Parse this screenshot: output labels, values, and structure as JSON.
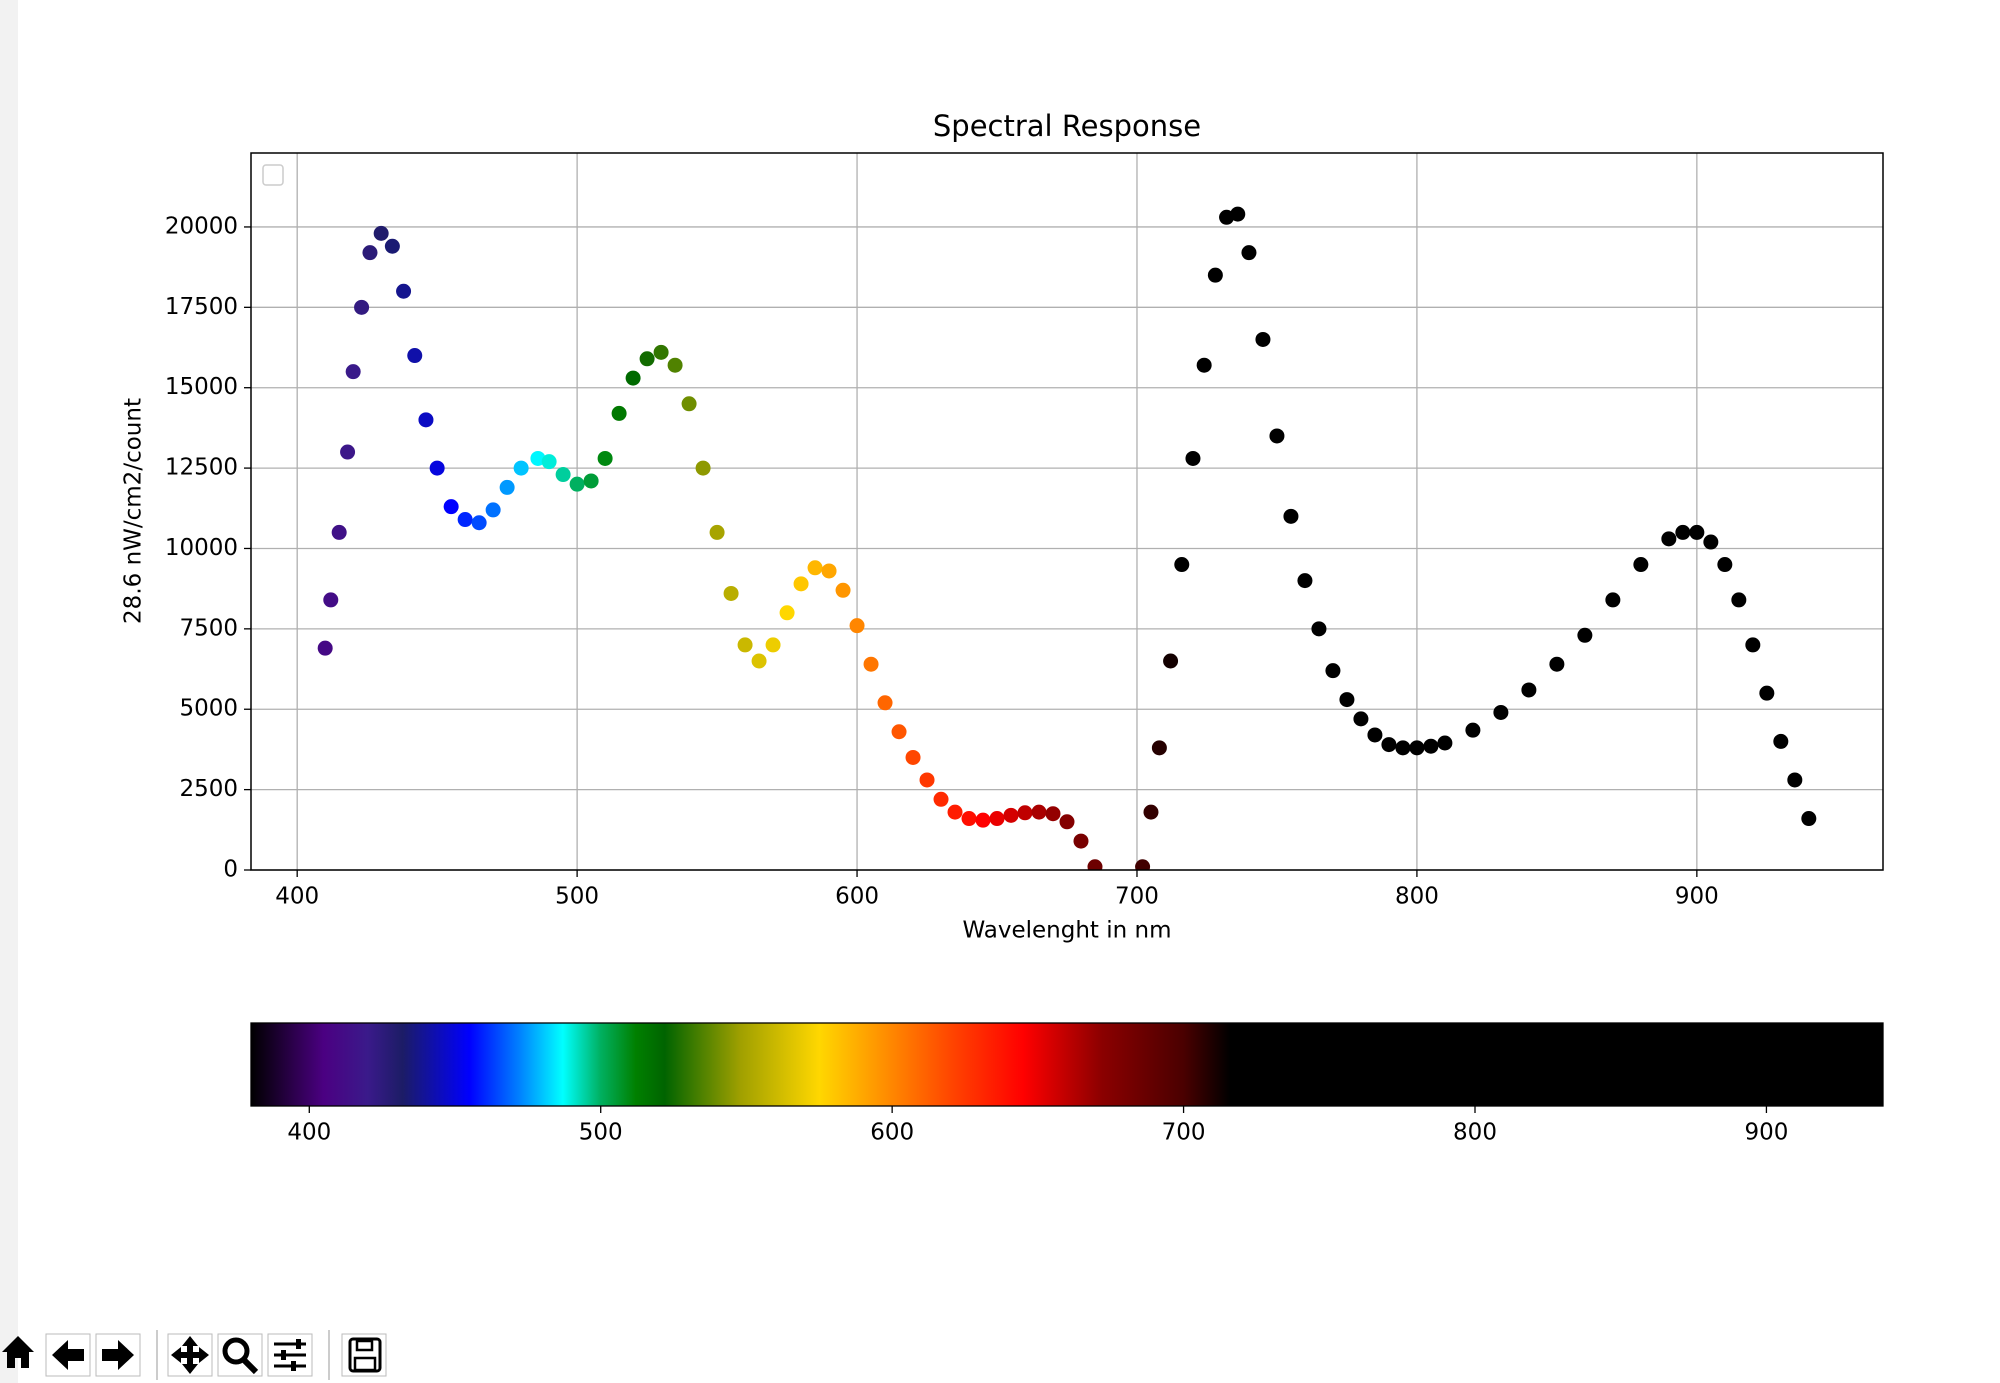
{
  "chart_data": {
    "type": "scatter",
    "title": "Spectral Response",
    "x_label": "Wavelenght in nm",
    "y_label": "28.6 nW/cm2/count",
    "x": [
      410,
      412,
      415,
      418,
      420,
      423,
      426,
      430,
      434,
      438,
      442,
      446,
      450,
      455,
      460,
      465,
      470,
      475,
      480,
      486,
      490,
      495,
      500,
      505,
      510,
      515,
      520,
      525,
      530,
      535,
      540,
      545,
      550,
      555,
      560,
      565,
      570,
      575,
      580,
      585,
      590,
      595,
      600,
      605,
      610,
      615,
      620,
      625,
      630,
      635,
      640,
      645,
      650,
      655,
      660,
      665,
      670,
      675,
      680,
      685,
      702,
      705,
      708,
      712,
      716,
      720,
      724,
      728,
      732,
      736,
      740,
      745,
      750,
      755,
      760,
      765,
      770,
      775,
      780,
      785,
      790,
      795,
      800,
      805,
      810,
      820,
      830,
      840,
      850,
      860,
      870,
      880,
      890,
      895,
      900,
      905,
      910,
      915,
      920,
      925,
      930,
      935,
      940
    ],
    "values": [
      6900,
      8400,
      10500,
      13000,
      15500,
      17500,
      19200,
      19800,
      19400,
      18000,
      16000,
      14000,
      12500,
      11300,
      10900,
      10800,
      11200,
      11900,
      12500,
      12800,
      12700,
      12300,
      12000,
      12100,
      12800,
      14200,
      15300,
      15900,
      16100,
      15700,
      14500,
      12500,
      10500,
      8600,
      7000,
      6500,
      7000,
      8000,
      8900,
      9400,
      9300,
      8700,
      7600,
      6400,
      5200,
      4300,
      3500,
      2800,
      2200,
      1800,
      1600,
      1550,
      1600,
      1700,
      1780,
      1800,
      1750,
      1500,
      900,
      100,
      100,
      1800,
      3800,
      6500,
      9500,
      12800,
      15700,
      18500,
      20300,
      20400,
      19200,
      16500,
      13500,
      11000,
      9000,
      7500,
      6200,
      5300,
      4700,
      4200,
      3900,
      3800,
      3800,
      3850,
      3950,
      4350,
      4900,
      5600,
      6400,
      7300,
      8400,
      9500,
      10300,
      10500,
      10500,
      10200,
      9500,
      8400,
      7000,
      5500,
      4000,
      2800,
      1600
    ],
    "xlim": [
      383.5,
      966.5
    ],
    "ylim": [
      0,
      22300
    ],
    "xticks": [
      400,
      500,
      600,
      700,
      800,
      900
    ],
    "yticks": [
      0,
      2500,
      5000,
      7500,
      10000,
      12500,
      15000,
      17500,
      20000
    ],
    "grid": true,
    "colormap": [
      {
        "value": 380,
        "color": "#000000"
      },
      {
        "value": 405,
        "color": "#4b0082"
      },
      {
        "value": 420,
        "color": "#3a1a8a"
      },
      {
        "value": 432,
        "color": "#1c1c66"
      },
      {
        "value": 455,
        "color": "#0000ff"
      },
      {
        "value": 472,
        "color": "#0080ff"
      },
      {
        "value": 487,
        "color": "#00ffff"
      },
      {
        "value": 500,
        "color": "#00b060"
      },
      {
        "value": 512,
        "color": "#008000"
      },
      {
        "value": 522,
        "color": "#006400"
      },
      {
        "value": 548,
        "color": "#a0a000"
      },
      {
        "value": 575,
        "color": "#ffd700"
      },
      {
        "value": 592,
        "color": "#ffa000"
      },
      {
        "value": 622,
        "color": "#ff4000"
      },
      {
        "value": 645,
        "color": "#ff0000"
      },
      {
        "value": 672,
        "color": "#8b0000"
      },
      {
        "value": 700,
        "color": "#4a0000"
      },
      {
        "value": 716,
        "color": "#000000"
      },
      {
        "value": 940,
        "color": "#000000"
      }
    ],
    "colorbar": {
      "xlim": [
        380,
        940
      ],
      "xticks": [
        400,
        500,
        600,
        700,
        800,
        900
      ]
    }
  }
}
